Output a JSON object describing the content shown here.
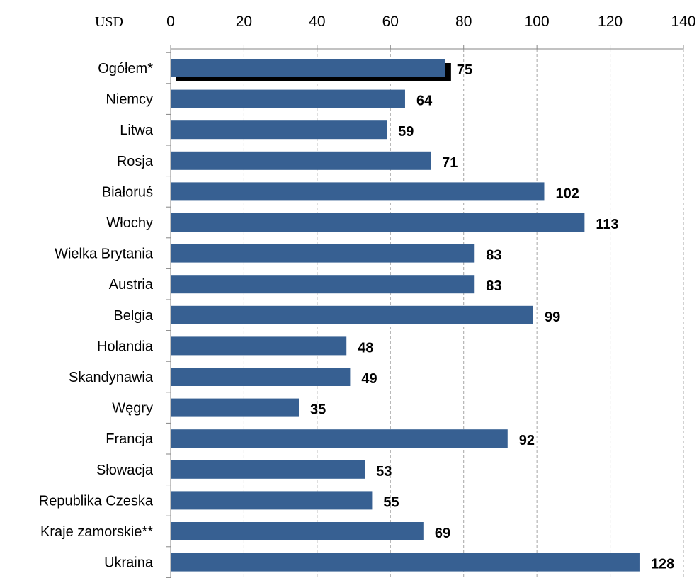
{
  "chart_data": {
    "type": "bar",
    "orientation": "horizontal",
    "unit_label": "USD",
    "categories": [
      "Ogółem*",
      "Niemcy",
      "Litwa",
      "Rosja",
      "Białoruś",
      "Włochy",
      "Wielka Brytania",
      "Austria",
      "Belgia",
      "Holandia",
      "Skandynawia",
      "Węgry",
      "Francja",
      "Słowacja",
      "Republika Czeska",
      "Kraje zamorskie**",
      "Ukraina"
    ],
    "values": [
      75,
      64,
      59,
      71,
      102,
      113,
      83,
      83,
      99,
      48,
      49,
      35,
      92,
      53,
      55,
      69,
      128
    ],
    "value_labels": [
      "75",
      "64",
      "59",
      "71",
      "102",
      "113",
      "83",
      "83",
      "99",
      "48",
      "49",
      "35",
      "92",
      "53",
      "55",
      "69",
      "128"
    ],
    "highlighted_category": "Ogółem*",
    "xlim": [
      0,
      140
    ],
    "x_ticks": [
      0,
      20,
      40,
      60,
      80,
      100,
      120,
      140
    ],
    "x_tick_labels": [
      "0",
      "20",
      "40",
      "60",
      "80",
      "100",
      "120",
      "140"
    ],
    "axis_position": "top",
    "grid": "vertical dashed",
    "legend": "none",
    "colors": {
      "bar": "#376092",
      "highlight_shadow": "#000000",
      "grid": "#a6a6a6",
      "axis": "#868686"
    }
  }
}
